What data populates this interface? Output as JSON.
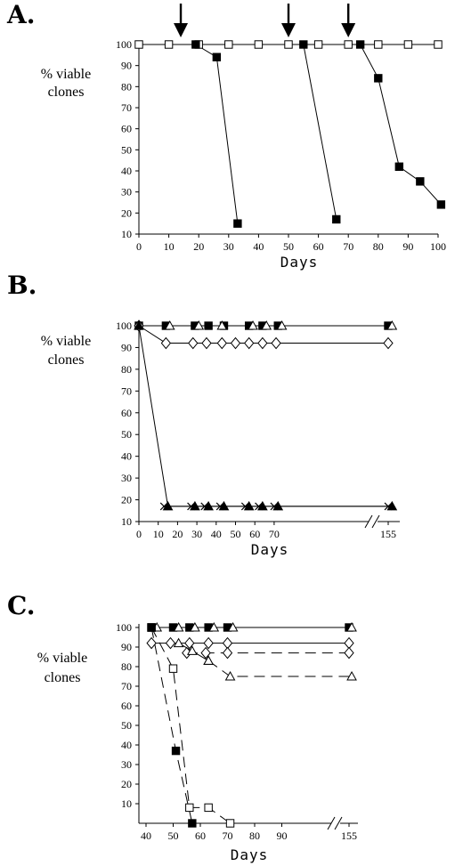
{
  "chart_data": [
    {
      "panel": "A.",
      "type": "line",
      "ylabel": [
        "% viable",
        "clones"
      ],
      "xlabel": "Days",
      "xlim": [
        0,
        100
      ],
      "ylim": [
        10,
        100
      ],
      "xticks": [
        "0",
        "10",
        "20",
        "30",
        "40",
        "50",
        "60",
        "70",
        "80",
        "90",
        "100"
      ],
      "yticks": [
        "10",
        "20",
        "30",
        "40",
        "50",
        "60",
        "70",
        "80",
        "90",
        "100"
      ],
      "arrows_at_x": [
        14,
        50,
        70
      ],
      "series": [
        {
          "marker": "square-open",
          "dash": false,
          "x": [
            0,
            10,
            20,
            30,
            40,
            50,
            60,
            70,
            80,
            90,
            100
          ],
          "y": [
            100,
            100,
            100,
            100,
            100,
            100,
            100,
            100,
            100,
            100,
            100
          ]
        },
        {
          "marker": "square-filled",
          "dash": false,
          "x": [
            19,
            26,
            33
          ],
          "y": [
            100,
            94,
            15
          ]
        },
        {
          "marker": "square-filled",
          "dash": false,
          "x": [
            55,
            66
          ],
          "y": [
            100,
            17
          ]
        },
        {
          "marker": "square-filled",
          "dash": false,
          "x": [
            74,
            80,
            87,
            94,
            101
          ],
          "y": [
            100,
            84,
            42,
            35,
            24
          ]
        }
      ]
    },
    {
      "panel": "B.",
      "type": "line",
      "ylabel": [
        "% viable",
        "clones"
      ],
      "xlabel": "Days",
      "xlim": [
        0,
        155
      ],
      "ylim": [
        10,
        100
      ],
      "xticks": [
        "0",
        "10",
        "20",
        "30",
        "40",
        "50",
        "60",
        "70",
        "155"
      ],
      "xtick_values": [
        0,
        10,
        20,
        30,
        40,
        50,
        60,
        70,
        155
      ],
      "axis_break_between": [
        70,
        155
      ],
      "yticks": [
        "10",
        "20",
        "30",
        "40",
        "50",
        "60",
        "70",
        "80",
        "90",
        "100"
      ],
      "series": [
        {
          "marker": "square-filled",
          "dash": false,
          "x": [
            0,
            14,
            29,
            36,
            44,
            57,
            64,
            72,
            155
          ],
          "y": [
            100,
            100,
            100,
            100,
            100,
            100,
            100,
            100,
            100
          ]
        },
        {
          "marker": "triangle-open",
          "dash": false,
          "x": [
            16,
            31,
            43,
            59,
            66,
            74,
            157
          ],
          "y": [
            100,
            100,
            100,
            100,
            100,
            100,
            100
          ]
        },
        {
          "marker": "diamond-open",
          "dash": false,
          "x": [
            0,
            14,
            28,
            35,
            43,
            50,
            57,
            64,
            71,
            155
          ],
          "y": [
            100,
            92,
            92,
            92,
            92,
            92,
            92,
            92,
            92,
            92
          ]
        },
        {
          "marker": "triangle-filled",
          "dash": false,
          "x": [
            0,
            15,
            29,
            36,
            44,
            57,
            64,
            72,
            157
          ],
          "y": [
            100,
            17,
            17,
            17,
            17,
            17,
            17,
            17,
            17
          ]
        },
        {
          "marker": "x",
          "dash": false,
          "x": [
            13,
            27,
            34,
            42,
            55,
            62,
            70,
            155
          ],
          "y": [
            17,
            17,
            17,
            17,
            17,
            17,
            17,
            17
          ]
        }
      ]
    },
    {
      "panel": "C.",
      "type": "line",
      "ylabel": [
        "% viable",
        "clones"
      ],
      "xlabel": "Days",
      "xlim": [
        40,
        155
      ],
      "ylim": [
        0,
        100
      ],
      "xticks": [
        "40",
        "50",
        "60",
        "70",
        "80",
        "90",
        "155"
      ],
      "xtick_values": [
        40,
        50,
        60,
        70,
        80,
        90,
        155
      ],
      "axis_break_between": [
        90,
        155
      ],
      "yticks": [
        "10",
        "20",
        "30",
        "40",
        "50",
        "60",
        "70",
        "80",
        "90",
        "100"
      ],
      "series": [
        {
          "marker": "square-filled",
          "dash": false,
          "x": [
            42,
            50,
            56,
            63,
            70,
            155
          ],
          "y": [
            100,
            100,
            100,
            100,
            100,
            100
          ]
        },
        {
          "marker": "triangle-open",
          "dash": false,
          "x": [
            44,
            52,
            58,
            65,
            72,
            156
          ],
          "y": [
            100,
            100,
            100,
            100,
            100,
            100
          ]
        },
        {
          "marker": "diamond-open",
          "dash": false,
          "x": [
            42,
            49,
            56,
            63,
            70,
            155
          ],
          "y": [
            92,
            92,
            92,
            92,
            92,
            92
          ]
        },
        {
          "marker": "diamond-open",
          "dash": true,
          "x": [
            55,
            62,
            70,
            155
          ],
          "y": [
            87,
            87,
            87,
            87
          ]
        },
        {
          "marker": "triangle-open",
          "dash": false,
          "x": [
            52,
            57,
            63
          ],
          "y": [
            92,
            88,
            83
          ]
        },
        {
          "marker": "triangle-open",
          "dash": true,
          "x": [
            63,
            71,
            156
          ],
          "y": [
            83,
            75,
            75
          ]
        },
        {
          "marker": "square-open",
          "dash": true,
          "x": [
            42,
            50,
            56,
            63,
            71
          ],
          "y": [
            100,
            79,
            8,
            8,
            0
          ]
        },
        {
          "marker": "square-filled",
          "dash": true,
          "x": [
            42,
            51,
            57
          ],
          "y": [
            100,
            37,
            0
          ]
        }
      ]
    }
  ]
}
